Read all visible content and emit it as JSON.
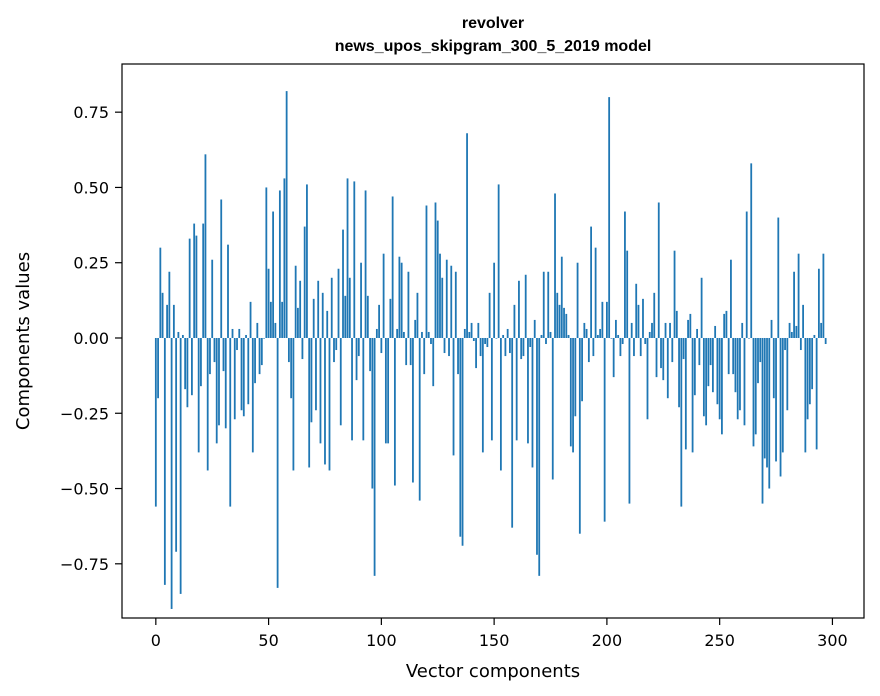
{
  "chart_data": {
    "type": "bar",
    "title": "revolver",
    "subtitle": "news_upos_skipgram_300_5_2019 model",
    "xlabel": "Vector components",
    "ylabel": "Components values",
    "xlim": [
      -15,
      314
    ],
    "ylim": [
      -0.93,
      0.91
    ],
    "xticks": [
      0,
      50,
      100,
      150,
      200,
      250,
      300
    ],
    "yticks": [
      -0.75,
      -0.5,
      -0.25,
      0.0,
      0.25,
      0.5,
      0.75
    ],
    "ytick_labels": [
      "−0.75",
      "−0.50",
      "−0.25",
      "0.00",
      "0.25",
      "0.50",
      "0.75"
    ],
    "color": "#1f77b4",
    "grid": false,
    "series": [
      {
        "x_start": 0,
        "values": [
          -0.56,
          -0.2,
          0.3,
          0.15,
          -0.82,
          0.11,
          0.22,
          -0.9,
          0.11,
          -0.71,
          0.02,
          -0.85,
          0.01,
          -0.17,
          -0.23,
          0.33,
          -0.19,
          0.38,
          0.34,
          -0.38,
          -0.16,
          0.38,
          0.61,
          -0.44,
          -0.12,
          0.26,
          -0.08,
          -0.35,
          -0.29,
          0.46,
          -0.11,
          -0.3,
          0.31,
          -0.56,
          0.03,
          -0.27,
          -0.04,
          0.03,
          -0.24,
          -0.26,
          0.01,
          -0.22,
          0.12,
          -0.38,
          -0.15,
          0.05,
          -0.12,
          -0.09,
          0.0,
          0.5,
          0.23,
          0.12,
          0.42,
          0.05,
          -0.83,
          0.49,
          0.12,
          0.53,
          0.82,
          -0.08,
          -0.2,
          -0.44,
          0.24,
          0.1,
          0.19,
          -0.07,
          0.37,
          0.51,
          -0.43,
          -0.28,
          0.13,
          -0.24,
          0.19,
          -0.35,
          0.15,
          -0.42,
          0.09,
          -0.44,
          0.2,
          -0.08,
          -0.04,
          0.23,
          -0.29,
          0.36,
          0.14,
          0.53,
          0.2,
          -0.34,
          0.52,
          -0.14,
          -0.06,
          0.25,
          -0.34,
          0.49,
          0.14,
          -0.11,
          -0.5,
          -0.79,
          0.03,
          0.11,
          -0.05,
          0.28,
          -0.35,
          -0.35,
          0.13,
          0.47,
          -0.49,
          0.03,
          0.27,
          0.25,
          0.02,
          -0.09,
          0.22,
          -0.09,
          -0.48,
          0.06,
          0.15,
          -0.54,
          0.02,
          -0.12,
          0.44,
          0.02,
          -0.02,
          -0.16,
          0.45,
          0.39,
          0.28,
          0.2,
          -0.05,
          0.26,
          -0.06,
          0.24,
          -0.39,
          0.22,
          -0.12,
          -0.66,
          -0.69,
          0.03,
          0.68,
          0.02,
          0.05,
          -0.01,
          -0.1,
          0.05,
          -0.06,
          -0.38,
          -0.02,
          -0.03,
          0.15,
          -0.34,
          0.25,
          0.0,
          0.51,
          -0.44,
          0.01,
          -0.06,
          0.03,
          -0.05,
          -0.63,
          0.11,
          -0.34,
          0.19,
          -0.07,
          -0.06,
          0.21,
          -0.35,
          -0.03,
          -0.43,
          0.06,
          -0.72,
          -0.79,
          0.01,
          0.22,
          -0.02,
          0.22,
          0.02,
          -0.47,
          0.48,
          0.15,
          0.11,
          0.27,
          0.1,
          0.08,
          0.01,
          -0.36,
          -0.38,
          -0.26,
          0.25,
          -0.65,
          -0.21,
          0.05,
          0.03,
          -0.08,
          0.37,
          -0.06,
          0.3,
          0.01,
          0.03,
          0.12,
          -0.61,
          0.12,
          0.8,
          0.0,
          -0.13,
          0.06,
          0.01,
          -0.06,
          -0.02,
          0.42,
          0.29,
          -0.55,
          0.05,
          -0.06,
          0.18,
          0.11,
          -0.06,
          0.13,
          -0.02,
          -0.27,
          0.02,
          0.05,
          0.15,
          -0.13,
          0.45,
          -0.1,
          -0.14,
          0.05,
          -0.2,
          0.05,
          -0.08,
          0.29,
          0.09,
          -0.23,
          -0.56,
          -0.07,
          -0.37,
          0.06,
          0.08,
          -0.38,
          -0.19,
          0.03,
          -0.09,
          0.2,
          -0.26,
          -0.29,
          -0.16,
          -0.09,
          -0.18,
          0.04,
          -0.22,
          -0.27,
          -0.32,
          0.08,
          0.09,
          -0.12,
          0.26,
          -0.12,
          -0.18,
          -0.27,
          -0.24,
          0.05,
          -0.29,
          0.42,
          0.0,
          0.58,
          -0.36,
          -0.32,
          -0.15,
          -0.08,
          -0.55,
          -0.4,
          -0.43,
          -0.5,
          0.06,
          -0.2,
          -0.41,
          0.4,
          -0.46,
          -0.38,
          -0.04,
          -0.24,
          0.05,
          0.02,
          0.22,
          0.04,
          0.28,
          -0.04,
          0.11,
          -0.38,
          -0.27,
          -0.22,
          -0.17,
          0.01,
          -0.37,
          0.23,
          0.05,
          0.28,
          -0.02
        ]
      }
    ]
  }
}
